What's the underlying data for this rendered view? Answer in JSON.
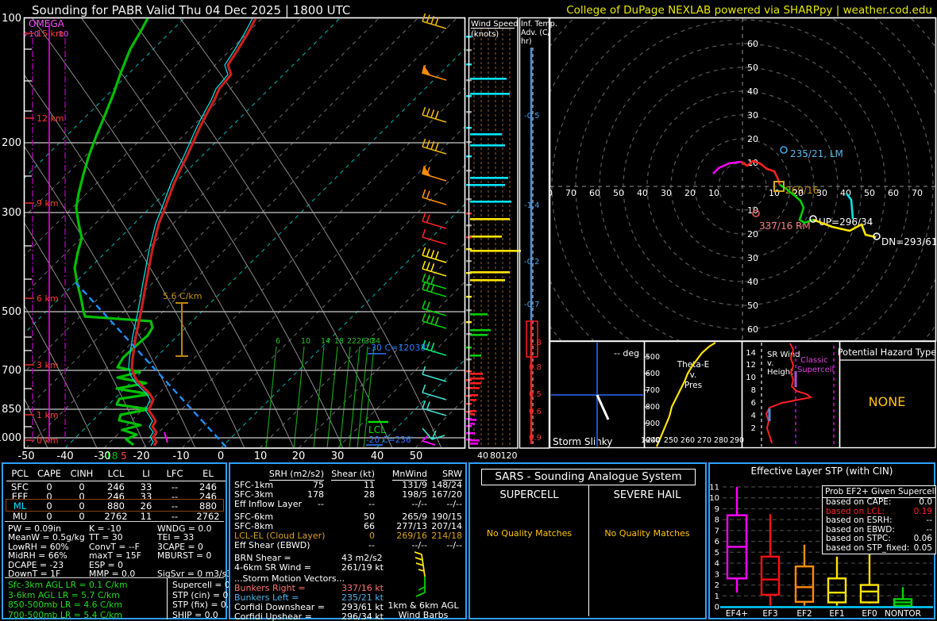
{
  "header": {
    "title": "Sounding for PABR Valid  Thu 04 Dec 2025 | 1800 UTC",
    "brand": "College of DuPage NEXLAB powered via SHARPpy | weather.cod.edu"
  },
  "skewt": {
    "omega": "OMEGA",
    "omega_plus": "+10",
    "omega_minus": "-10",
    "pressures": [
      "100",
      "200",
      "300",
      "500",
      "700",
      "850",
      "1000"
    ],
    "heights": [
      "15 km",
      "12 km",
      "9 km",
      "6 km",
      "3 km",
      "1 km",
      "0 km"
    ],
    "temps": [
      "-50",
      "-40",
      "-30",
      "-20",
      "-10",
      "0",
      "10",
      "20",
      "30",
      "40",
      "50"
    ],
    "mixing_ratios": [
      "6",
      "10",
      "14",
      "18",
      "22",
      "26",
      "30",
      "34"
    ],
    "lapse_marker": "5.6 C/km",
    "iso30_note": "-30 C=12038'",
    "lcl": "LCL",
    "iso20_note": "-20 C=236'",
    "sfc_dewpoint": "-18",
    "sfc_temp": "5"
  },
  "wind_panel": {
    "title1": "Wind Speed",
    "title2": "(knots)",
    "axis": [
      "40",
      "80",
      "120"
    ]
  },
  "adv_panel": {
    "title1": "Inf. Temp.",
    "title2": "Adv. (C/",
    "title3": "hr)",
    "cool": [
      "-0.5",
      "-1.4",
      "-0.2",
      "-0.7"
    ],
    "warm": [
      "1.8",
      "0.8",
      "0.5",
      "0.6",
      "0.9"
    ]
  },
  "hodograph": {
    "ring_labels": [
      "10",
      "20",
      "30",
      "40",
      "50",
      "60",
      "70",
      "80"
    ],
    "lm": "235/21, LM",
    "mean": "269/16",
    "rm": "337/16 RM",
    "up": "UP=296/34",
    "dn": "DN=293/61",
    "colors": {
      "low": "#ff00ff",
      "mid": "#ff2020",
      "upper": "#00cf00",
      "high": "#ffe400",
      "anvil": "#00e5e5"
    }
  },
  "slinky": {
    "deg": "-- deg",
    "title": "Storm Slinky"
  },
  "thetae": {
    "t1": "Theta-E",
    "t2": "v.",
    "t3": "Pres",
    "pres_ticks": [
      "500",
      "600",
      "700",
      "800",
      "900",
      "1000"
    ],
    "theta_ticks": [
      "240",
      "250",
      "260",
      "270",
      "280",
      "290"
    ]
  },
  "srwind": {
    "t1": "SR Wind",
    "t2": "v.",
    "t3": "Height",
    "h_ticks": [
      "2",
      "4",
      "6",
      "8",
      "10",
      "12",
      "14"
    ],
    "c1": "Classic",
    "c2": "Supercell"
  },
  "hazard": {
    "title": "Potential Hazard Type",
    "value": "NONE"
  },
  "parcels": {
    "headers": [
      "PCL",
      "CAPE",
      "CINH",
      "LCL",
      "LI",
      "LFC",
      "EL"
    ],
    "rows": [
      [
        "SFC",
        "0",
        "0",
        "246",
        "33",
        "--",
        "246"
      ],
      [
        "EFF",
        "0",
        "0",
        "246",
        "33",
        "--",
        "246"
      ],
      [
        "ML",
        "0",
        "0",
        "880",
        "26",
        "--",
        "880"
      ],
      [
        "MU",
        "0",
        "0",
        "2762",
        "11",
        "--",
        "2762"
      ]
    ],
    "selected": "ML"
  },
  "thermo": {
    "col1": [
      "PW = 0.09in",
      "MeanW = 0.5g/kg",
      "LowRH = 60%",
      "MidRH = 66%",
      "DCAPE = -23",
      "DownT = 1F"
    ],
    "col2": [
      "K = -10",
      "TT = 30",
      "ConvT = --F",
      "maxT = 15F",
      "ESP = 0",
      "MMP = 0.0"
    ],
    "col3": [
      "WNDG = 0.0",
      "TEI = 33",
      "3CAPE = 0",
      "MBURST = 0",
      "",
      "SigSvr = 0 m3/s3"
    ]
  },
  "lapse_rates": [
    "Sfc-3km AGL LR = 0.1 C/km",
    "3-6km AGL LR = 5.7 C/km",
    "850-500mb LR = 4.6 C/km",
    "700-500mb LR = 5.4 C/km"
  ],
  "composites": [
    "Supercell = 0.0",
    "STP (cin) = 0.0",
    "STP (fix) = 0.0",
    "SHIP = 0.0"
  ],
  "kinematics": {
    "headers": [
      "SRH (m2/s2)",
      "Shear (kt)",
      "MnWind",
      "SRW"
    ],
    "rows": [
      {
        "label": "SFC-1km",
        "values": [
          "75",
          "11",
          "131/9",
          "148/24"
        ],
        "color": "#ffffff"
      },
      {
        "label": "SFC-3km",
        "values": [
          "178",
          "28",
          "198/5",
          "167/20"
        ],
        "color": "#ffffff"
      },
      {
        "label": "Eff Inflow Layer",
        "values": [
          "--",
          "--",
          "--/--",
          "--/--"
        ],
        "color": "#ffffff"
      },
      {
        "label": "SFC-6km",
        "values": [
          "",
          "50",
          "265/9",
          "190/15"
        ],
        "color": "#ffffff"
      },
      {
        "label": "SFC-8km",
        "values": [
          "",
          "66",
          "277/13",
          "207/14"
        ],
        "color": "#ffffff"
      },
      {
        "label": "LCL-EL (Cloud Layer)",
        "values": [
          "",
          "0",
          "269/16",
          "214/18"
        ],
        "color": "#d8a01a"
      },
      {
        "label": "Eff Shear (EBWD)",
        "values": [
          "",
          "--",
          "--/--",
          "--/--"
        ],
        "color": "#ffffff"
      }
    ],
    "brn_label": "BRN Shear =",
    "brn_value": "43 m2/s2",
    "sr46_label": "4-6km SR Wind =",
    "sr46_value": "261/19 kt",
    "storm_motion_header": "...Storm Motion Vectors...",
    "vectors": [
      {
        "label": "Bunkers Right =",
        "value": "337/16 kt",
        "color": "#ff7070"
      },
      {
        "label": "Bunkers Left =",
        "value": "235/21 kt",
        "color": "#4fb3e8"
      },
      {
        "label": "Corfidi Downshear =",
        "value": "293/61 kt",
        "color": "#ffffff"
      },
      {
        "label": "Corfidi Upshear =",
        "value": "296/34 kt",
        "color": "#ffffff"
      }
    ],
    "barb_caption1": "1km & 6km AGL",
    "barb_caption2": "Wind Barbs"
  },
  "sars": {
    "title": "SARS - Sounding Analogue System",
    "columns": [
      {
        "header": "SUPERCELL",
        "message": "No Quality Matches"
      },
      {
        "header": "SEVERE HAIL",
        "message": "No Quality Matches"
      }
    ]
  },
  "stp": {
    "title": "Effective Layer STP (with CIN)",
    "y_ticks": [
      "0",
      "1",
      "2",
      "3",
      "4",
      "5",
      "6",
      "7",
      "8",
      "9",
      "10",
      "11"
    ],
    "categories": [
      "EF4+",
      "EF3",
      "EF2",
      "EF1",
      "EF0",
      "NONTOR"
    ],
    "colors": [
      "#ff00ff",
      "#ff1010",
      "#ff8c00",
      "#ffe400",
      "#ffe400",
      "#00d000"
    ],
    "boxes": [
      {
        "lo": 1.3,
        "q1": 2.6,
        "med": 5.5,
        "q3": 8.4,
        "hi": 11.0
      },
      {
        "lo": 0.1,
        "q1": 1.1,
        "med": 2.5,
        "q3": 4.6,
        "hi": 8.5
      },
      {
        "lo": 0.1,
        "q1": 0.45,
        "med": 1.8,
        "q3": 3.7,
        "hi": 5.7
      },
      {
        "lo": 0.1,
        "q1": 0.4,
        "med": 1.3,
        "q3": 2.6,
        "hi": 4.6
      },
      {
        "lo": 0.3,
        "q1": 0.4,
        "med": 1.4,
        "q3": 2.0,
        "hi": 5.8
      },
      {
        "lo": 0.05,
        "q1": 0.1,
        "med": 0.4,
        "q3": 0.7,
        "hi": 1.8
      }
    ],
    "prob": {
      "title": "Prob EF2+ Given Supercell",
      "rows": [
        {
          "label": "based on CAPE:",
          "value": "0.0",
          "color": "#ffffff"
        },
        {
          "label": "based on LCL:",
          "value": "0.19",
          "color": "#ff2020"
        },
        {
          "label": "based on ESRH:",
          "value": "--",
          "color": "#ffffff"
        },
        {
          "label": "based on EBWD:",
          "value": "--",
          "color": "#ffffff"
        },
        {
          "label": "based on STPC:",
          "value": "0.06",
          "color": "#ffffff"
        },
        {
          "label": "based on STP_fixed:",
          "value": "0.05",
          "color": "#ffffff"
        }
      ]
    }
  }
}
